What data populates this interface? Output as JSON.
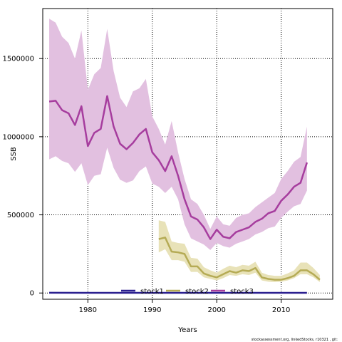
{
  "chart_data": {
    "type": "line",
    "xlabel": "Years",
    "ylabel": "SSB",
    "xlim": [
      1973,
      2018
    ],
    "ylim": [
      -40000,
      1820000
    ],
    "xticks": [
      1980,
      1990,
      2000,
      2010
    ],
    "yticks": [
      0,
      500000,
      1000000,
      1500000
    ],
    "grid": true,
    "legend_position": "bottom-center",
    "credit": "stockassessment.org, linkedStocks, r10321 , git:",
    "series": [
      {
        "name": "stock1",
        "color": "#2a1f8f",
        "band_color": "#b8b0e0",
        "x": [
          1974,
          1980,
          1990,
          2000,
          2010,
          2014
        ],
        "y": [
          1500,
          1200,
          1000,
          800,
          900,
          1000
        ],
        "lower": [
          500,
          400,
          300,
          200,
          300,
          300
        ],
        "upper": [
          3000,
          2500,
          2000,
          1800,
          2000,
          2200
        ]
      },
      {
        "name": "stock2",
        "color": "#b5ab55",
        "band_color": "#e8e2b8",
        "x": [
          1991,
          1992,
          1993,
          1994,
          1995,
          1996,
          1997,
          1998,
          1999,
          2000,
          2001,
          2002,
          2003,
          2004,
          2005,
          2006,
          2007,
          2008,
          2009,
          2010,
          2011,
          2012,
          2013,
          2014,
          2015,
          2016
        ],
        "y": [
          345000,
          355000,
          265000,
          260000,
          250000,
          170000,
          170000,
          125000,
          110000,
          100000,
          120000,
          140000,
          130000,
          145000,
          140000,
          160000,
          100000,
          90000,
          85000,
          85000,
          95000,
          110000,
          145000,
          145000,
          120000,
          85000
        ],
        "lower": [
          260000,
          280000,
          210000,
          210000,
          200000,
          135000,
          135000,
          100000,
          90000,
          80000,
          95000,
          115000,
          110000,
          120000,
          115000,
          130000,
          80000,
          72000,
          70000,
          72000,
          80000,
          95000,
          120000,
          120000,
          100000,
          70000
        ],
        "upper": [
          465000,
          455000,
          330000,
          320000,
          315000,
          225000,
          220000,
          165000,
          145000,
          130000,
          155000,
          175000,
          165000,
          180000,
          175000,
          200000,
          130000,
          115000,
          110000,
          110000,
          125000,
          145000,
          195000,
          195000,
          160000,
          115000
        ]
      },
      {
        "name": "stock3",
        "color": "#a63d9e",
        "band_color": "#e2c0e0",
        "x": [
          1974,
          1975,
          1976,
          1977,
          1978,
          1979,
          1980,
          1981,
          1982,
          1983,
          1984,
          1985,
          1986,
          1987,
          1988,
          1989,
          1990,
          1991,
          1992,
          1993,
          1994,
          1995,
          1996,
          1997,
          1998,
          1999,
          2000,
          2001,
          2002,
          2003,
          2004,
          2005,
          2006,
          2007,
          2008,
          2009,
          2010,
          2011,
          2012,
          2013,
          2014
        ],
        "y": [
          1225000,
          1230000,
          1170000,
          1150000,
          1075000,
          1195000,
          940000,
          1025000,
          1050000,
          1260000,
          1065000,
          955000,
          920000,
          960000,
          1015000,
          1050000,
          900000,
          850000,
          780000,
          875000,
          750000,
          600000,
          490000,
          470000,
          420000,
          345000,
          405000,
          360000,
          350000,
          390000,
          405000,
          420000,
          455000,
          475000,
          510000,
          525000,
          590000,
          630000,
          680000,
          705000,
          835000
        ],
        "lower": [
          855000,
          875000,
          845000,
          830000,
          775000,
          830000,
          690000,
          750000,
          760000,
          930000,
          800000,
          725000,
          705000,
          720000,
          780000,
          810000,
          700000,
          680000,
          640000,
          680000,
          600000,
          440000,
          350000,
          330000,
          310000,
          275000,
          320000,
          300000,
          290000,
          315000,
          330000,
          345000,
          375000,
          390000,
          415000,
          425000,
          480000,
          520000,
          555000,
          570000,
          655000
        ],
        "upper": [
          1755000,
          1730000,
          1640000,
          1600000,
          1500000,
          1680000,
          1300000,
          1400000,
          1440000,
          1690000,
          1420000,
          1250000,
          1190000,
          1290000,
          1310000,
          1370000,
          1130000,
          1050000,
          950000,
          1100000,
          900000,
          730000,
          600000,
          570000,
          500000,
          410000,
          490000,
          440000,
          430000,
          480000,
          500000,
          510000,
          550000,
          580000,
          610000,
          640000,
          730000,
          780000,
          840000,
          870000,
          1065000
        ]
      }
    ]
  }
}
